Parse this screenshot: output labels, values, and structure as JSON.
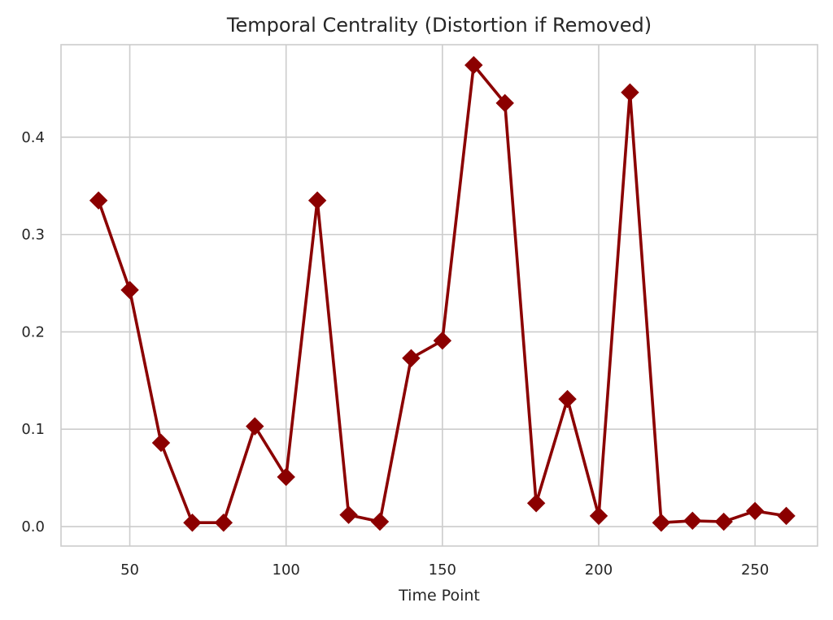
{
  "chart_data": {
    "type": "line",
    "title": "Temporal Centrality (Distortion if Removed)",
    "xlabel": "Time Point",
    "ylabel": "",
    "xlim": [
      28,
      270
    ],
    "ylim": [
      -0.02,
      0.495
    ],
    "xticks": [
      50,
      100,
      150,
      200,
      250
    ],
    "yticks": [
      0.0,
      0.1,
      0.2,
      0.3,
      0.4
    ],
    "ytick_labels": [
      "0.0",
      "0.1",
      "0.2",
      "0.3",
      "0.4"
    ],
    "grid": true,
    "legend": false,
    "series": [
      {
        "color": "#8b0000",
        "marker": "diamond",
        "x": [
          40,
          50,
          60,
          70,
          80,
          90,
          100,
          110,
          120,
          130,
          140,
          150,
          160,
          170,
          180,
          190,
          200,
          210,
          220,
          230,
          240,
          250,
          260
        ],
        "y": [
          0.335,
          0.243,
          0.086,
          0.004,
          0.004,
          0.103,
          0.051,
          0.335,
          0.012,
          0.005,
          0.173,
          0.191,
          0.474,
          0.435,
          0.024,
          0.131,
          0.011,
          0.446,
          0.004,
          0.006,
          0.005,
          0.016,
          0.011
        ]
      }
    ]
  }
}
